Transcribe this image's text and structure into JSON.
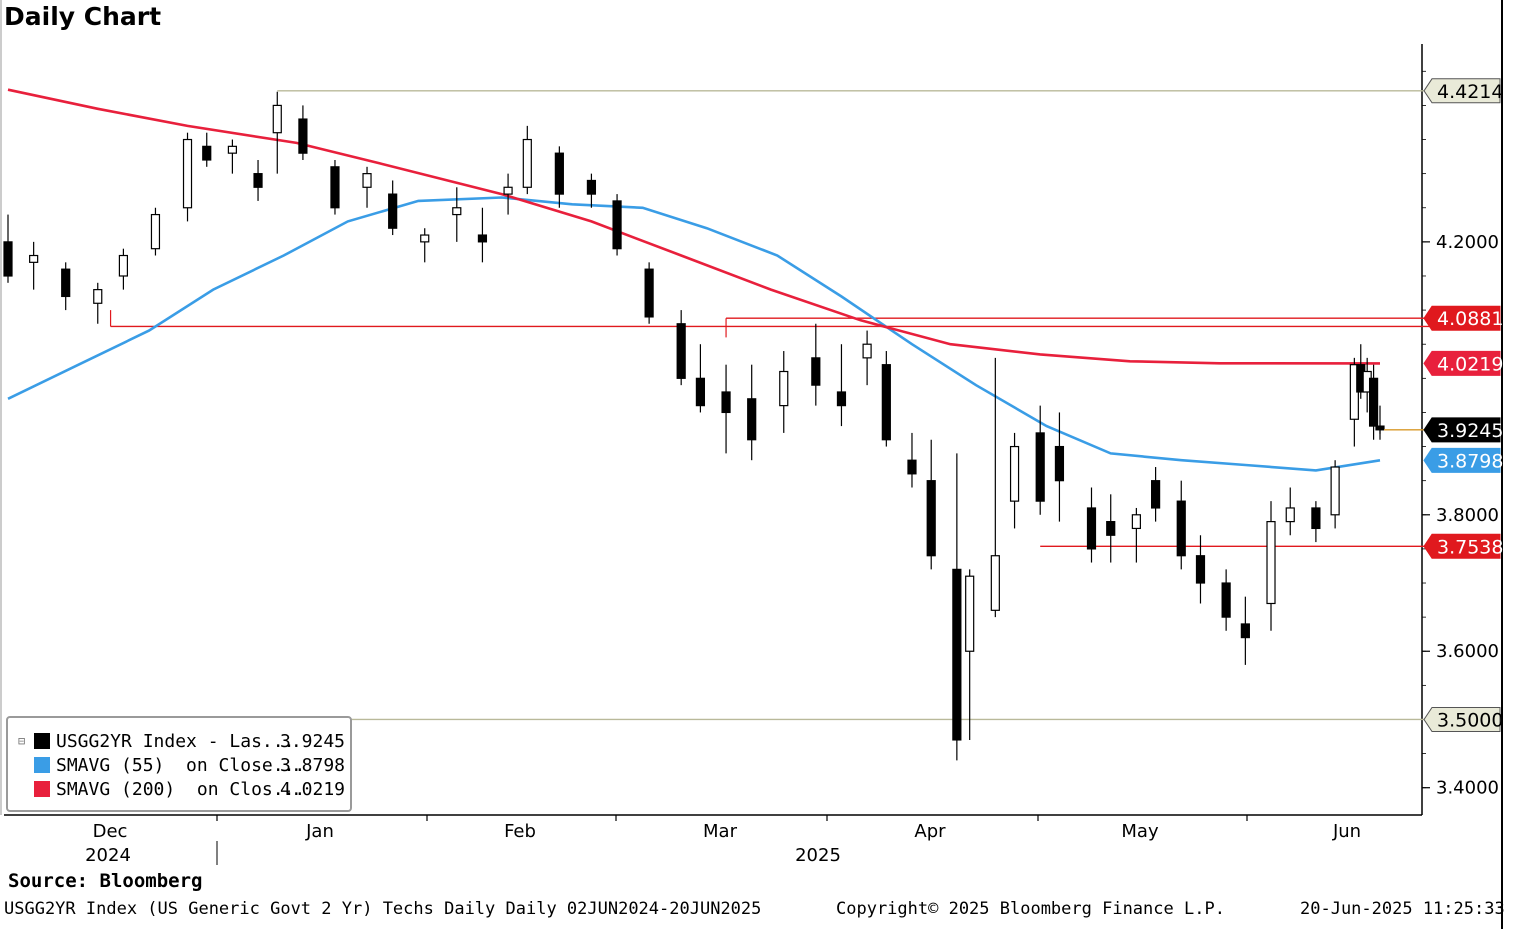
{
  "title": "Daily Chart",
  "source": "Source: Bloomberg",
  "footer": {
    "left": "USGG2YR Index (US Generic Govt 2 Yr) Techs Daily  Daily 02JUN2024-20JUN2025",
    "center": "Copyright© 2025 Bloomberg Finance L.P.",
    "right": "20-Jun-2025 11:25:33"
  },
  "legend": [
    {
      "label": "USGG2YR Index - Las...",
      "value": "3.9245",
      "color": "#000000"
    },
    {
      "label": "SMAVG (55)  on Close...",
      "value": "3.8798",
      "color": "#3a9de6"
    },
    {
      "label": "SMAVG (200)  on Clos...",
      "value": "4.0219",
      "color": "#e8203c"
    }
  ],
  "chart_data": {
    "type": "candlestick",
    "x_axis": {
      "months": [
        "Dec",
        "Jan",
        "Feb",
        "Mar",
        "Apr",
        "May",
        "Jun"
      ],
      "years": [
        "2024",
        "2025"
      ]
    },
    "y_axis": {
      "ticks": [
        "3.4000",
        "3.6000",
        "3.8000",
        "4.2000"
      ],
      "ylim": [
        3.36,
        4.49
      ],
      "side": "right"
    },
    "value_tags": [
      {
        "value": 4.4214,
        "label": "4.4214",
        "style": "outline",
        "color": "#9a9a6a"
      },
      {
        "value": 4.0881,
        "label": "4.0881",
        "style": "fill",
        "color": "#e0191e"
      },
      {
        "value": 4.0219,
        "label": "4.0219",
        "style": "fill",
        "color": "#e8203c"
      },
      {
        "value": 3.9245,
        "label": "3.9245",
        "style": "fill",
        "color": "#000000"
      },
      {
        "value": 3.8798,
        "label": "3.8798",
        "style": "fill",
        "color": "#3a9de6"
      },
      {
        "value": 3.7538,
        "label": "3.7538",
        "style": "fill",
        "color": "#e0191e"
      },
      {
        "value": 3.5,
        "label": "3.5000",
        "style": "outline",
        "color": "#9a9a6a"
      }
    ],
    "horizontal_levels": [
      {
        "value": 4.4214,
        "from_date": "2024-12-30",
        "color": "#b9b99a"
      },
      {
        "value": 4.0881,
        "from_date": "2025-03-10",
        "color": "#e0191e"
      },
      {
        "value": 4.076,
        "from_date": "2024-12-04",
        "color": "#e0191e"
      },
      {
        "value": 3.7538,
        "from_date": "2025-04-28",
        "color": "#e0191e"
      },
      {
        "value": 3.5,
        "from_date": "2024-11-18",
        "color": "#b9b99a"
      }
    ],
    "series": [
      {
        "name": "SMAVG (55)",
        "color": "#3a9de6",
        "points": [
          [
            "2024-11-18",
            3.97
          ],
          [
            "2024-11-29",
            4.02
          ],
          [
            "2024-12-10",
            4.07
          ],
          [
            "2024-12-20",
            4.13
          ],
          [
            "2024-12-31",
            4.18
          ],
          [
            "2025-01-10",
            4.23
          ],
          [
            "2025-01-21",
            4.26
          ],
          [
            "2025-02-03",
            4.265
          ],
          [
            "2025-02-14",
            4.255
          ],
          [
            "2025-02-25",
            4.25
          ],
          [
            "2025-03-07",
            4.22
          ],
          [
            "2025-03-18",
            4.18
          ],
          [
            "2025-03-28",
            4.12
          ],
          [
            "2025-04-08",
            4.05
          ],
          [
            "2025-04-18",
            3.99
          ],
          [
            "2025-04-29",
            3.93
          ],
          [
            "2025-05-09",
            3.89
          ],
          [
            "2025-05-20",
            3.88
          ],
          [
            "2025-05-30",
            3.873
          ],
          [
            "2025-06-10",
            3.865
          ],
          [
            "2025-06-20",
            3.8798
          ]
        ]
      },
      {
        "name": "SMAVG (200)",
        "color": "#e8203c",
        "points": [
          [
            "2024-11-18",
            4.423
          ],
          [
            "2024-12-02",
            4.395
          ],
          [
            "2024-12-16",
            4.37
          ],
          [
            "2025-01-02",
            4.345
          ],
          [
            "2025-01-15",
            4.315
          ],
          [
            "2025-02-03",
            4.27
          ],
          [
            "2025-02-17",
            4.23
          ],
          [
            "2025-03-03",
            4.18
          ],
          [
            "2025-03-17",
            4.13
          ],
          [
            "2025-03-31",
            4.085
          ],
          [
            "2025-04-14",
            4.05
          ],
          [
            "2025-04-28",
            4.035
          ],
          [
            "2025-05-12",
            4.025
          ],
          [
            "2025-05-26",
            4.022
          ],
          [
            "2025-06-20",
            4.0219
          ]
        ]
      }
    ],
    "candles": [
      {
        "date": "2024-11-18",
        "open": 4.2,
        "high": 4.24,
        "low": 4.14,
        "close": 4.15
      },
      {
        "date": "2024-11-22",
        "open": 4.17,
        "high": 4.2,
        "low": 4.13,
        "close": 4.18
      },
      {
        "date": "2024-11-27",
        "open": 4.16,
        "high": 4.17,
        "low": 4.1,
        "close": 4.12
      },
      {
        "date": "2024-12-02",
        "open": 4.11,
        "high": 4.14,
        "low": 4.08,
        "close": 4.13
      },
      {
        "date": "2024-12-06",
        "open": 4.15,
        "high": 4.19,
        "low": 4.13,
        "close": 4.18
      },
      {
        "date": "2024-12-11",
        "open": 4.19,
        "high": 4.25,
        "low": 4.18,
        "close": 4.24
      },
      {
        "date": "2024-12-16",
        "open": 4.25,
        "high": 4.36,
        "low": 4.23,
        "close": 4.35
      },
      {
        "date": "2024-12-19",
        "open": 4.34,
        "high": 4.36,
        "low": 4.31,
        "close": 4.32
      },
      {
        "date": "2024-12-23",
        "open": 4.33,
        "high": 4.35,
        "low": 4.3,
        "close": 4.34
      },
      {
        "date": "2024-12-27",
        "open": 4.3,
        "high": 4.32,
        "low": 4.26,
        "close": 4.28
      },
      {
        "date": "2024-12-30",
        "open": 4.36,
        "high": 4.42,
        "low": 4.3,
        "close": 4.4
      },
      {
        "date": "2025-01-03",
        "open": 4.38,
        "high": 4.4,
        "low": 4.32,
        "close": 4.33
      },
      {
        "date": "2025-01-08",
        "open": 4.31,
        "high": 4.32,
        "low": 4.24,
        "close": 4.25
      },
      {
        "date": "2025-01-13",
        "open": 4.28,
        "high": 4.31,
        "low": 4.25,
        "close": 4.3
      },
      {
        "date": "2025-01-17",
        "open": 4.27,
        "high": 4.29,
        "low": 4.21,
        "close": 4.22
      },
      {
        "date": "2025-01-22",
        "open": 4.2,
        "high": 4.22,
        "low": 4.17,
        "close": 4.21
      },
      {
        "date": "2025-01-27",
        "open": 4.24,
        "high": 4.28,
        "low": 4.2,
        "close": 4.25
      },
      {
        "date": "2025-01-31",
        "open": 4.21,
        "high": 4.25,
        "low": 4.17,
        "close": 4.2
      },
      {
        "date": "2025-02-04",
        "open": 4.27,
        "high": 4.3,
        "low": 4.24,
        "close": 4.28
      },
      {
        "date": "2025-02-07",
        "open": 4.28,
        "high": 4.37,
        "low": 4.27,
        "close": 4.35
      },
      {
        "date": "2025-02-12",
        "open": 4.33,
        "high": 4.34,
        "low": 4.25,
        "close": 4.27
      },
      {
        "date": "2025-02-17",
        "open": 4.29,
        "high": 4.3,
        "low": 4.25,
        "close": 4.27
      },
      {
        "date": "2025-02-21",
        "open": 4.26,
        "high": 4.27,
        "low": 4.18,
        "close": 4.19
      },
      {
        "date": "2025-02-26",
        "open": 4.16,
        "high": 4.17,
        "low": 4.08,
        "close": 4.09
      },
      {
        "date": "2025-03-03",
        "open": 4.08,
        "high": 4.1,
        "low": 3.99,
        "close": 4.0
      },
      {
        "date": "2025-03-06",
        "open": 4.0,
        "high": 4.05,
        "low": 3.95,
        "close": 3.96
      },
      {
        "date": "2025-03-10",
        "open": 3.98,
        "high": 4.02,
        "low": 3.89,
        "close": 3.95
      },
      {
        "date": "2025-03-14",
        "open": 3.97,
        "high": 4.02,
        "low": 3.88,
        "close": 3.91
      },
      {
        "date": "2025-03-19",
        "open": 3.96,
        "high": 4.04,
        "low": 3.92,
        "close": 4.01
      },
      {
        "date": "2025-03-24",
        "open": 4.03,
        "high": 4.08,
        "low": 3.96,
        "close": 3.99
      },
      {
        "date": "2025-03-28",
        "open": 3.98,
        "high": 4.05,
        "low": 3.93,
        "close": 3.96
      },
      {
        "date": "2025-04-01",
        "open": 4.03,
        "high": 4.07,
        "low": 3.99,
        "close": 4.05
      },
      {
        "date": "2025-04-04",
        "open": 4.02,
        "high": 4.04,
        "low": 3.9,
        "close": 3.91
      },
      {
        "date": "2025-04-08",
        "open": 3.88,
        "high": 3.92,
        "low": 3.84,
        "close": 3.86
      },
      {
        "date": "2025-04-11",
        "open": 3.85,
        "high": 3.91,
        "low": 3.72,
        "close": 3.74
      },
      {
        "date": "2025-04-15",
        "open": 3.72,
        "high": 3.89,
        "low": 3.44,
        "close": 3.47
      },
      {
        "date": "2025-04-17",
        "open": 3.6,
        "high": 3.72,
        "low": 3.47,
        "close": 3.71
      },
      {
        "date": "2025-04-21",
        "open": 3.66,
        "high": 4.03,
        "low": 3.65,
        "close": 3.74
      },
      {
        "date": "2025-04-24",
        "open": 3.82,
        "high": 3.92,
        "low": 3.78,
        "close": 3.9
      },
      {
        "date": "2025-04-28",
        "open": 3.92,
        "high": 3.96,
        "low": 3.8,
        "close": 3.82
      },
      {
        "date": "2025-05-01",
        "open": 3.9,
        "high": 3.95,
        "low": 3.79,
        "close": 3.85
      },
      {
        "date": "2025-05-06",
        "open": 3.81,
        "high": 3.84,
        "low": 3.73,
        "close": 3.75
      },
      {
        "date": "2025-05-09",
        "open": 3.79,
        "high": 3.83,
        "low": 3.73,
        "close": 3.77
      },
      {
        "date": "2025-05-13",
        "open": 3.78,
        "high": 3.81,
        "low": 3.73,
        "close": 3.8
      },
      {
        "date": "2025-05-16",
        "open": 3.85,
        "high": 3.87,
        "low": 3.79,
        "close": 3.81
      },
      {
        "date": "2025-05-20",
        "open": 3.82,
        "high": 3.85,
        "low": 3.72,
        "close": 3.74
      },
      {
        "date": "2025-05-23",
        "open": 3.74,
        "high": 3.77,
        "low": 3.67,
        "close": 3.7
      },
      {
        "date": "2025-05-27",
        "open": 3.7,
        "high": 3.72,
        "low": 3.63,
        "close": 3.65
      },
      {
        "date": "2025-05-30",
        "open": 3.64,
        "high": 3.68,
        "low": 3.58,
        "close": 3.62
      },
      {
        "date": "2025-06-03",
        "open": 3.67,
        "high": 3.82,
        "low": 3.63,
        "close": 3.79
      },
      {
        "date": "2025-06-06",
        "open": 3.79,
        "high": 3.84,
        "low": 3.77,
        "close": 3.81
      },
      {
        "date": "2025-06-10",
        "open": 3.81,
        "high": 3.82,
        "low": 3.76,
        "close": 3.78
      },
      {
        "date": "2025-06-13",
        "open": 3.8,
        "high": 3.88,
        "low": 3.78,
        "close": 3.87
      },
      {
        "date": "2025-06-16",
        "open": 3.94,
        "high": 4.03,
        "low": 3.9,
        "close": 4.02
      },
      {
        "date": "2025-06-17",
        "open": 4.02,
        "high": 4.05,
        "low": 3.97,
        "close": 3.98
      },
      {
        "date": "2025-06-18",
        "open": 3.98,
        "high": 4.03,
        "low": 3.95,
        "close": 4.01
      },
      {
        "date": "2025-06-19",
        "open": 4.0,
        "high": 4.02,
        "low": 3.91,
        "close": 3.93
      },
      {
        "date": "2025-06-20",
        "open": 3.93,
        "high": 3.96,
        "low": 3.91,
        "close": 3.9245
      }
    ]
  }
}
